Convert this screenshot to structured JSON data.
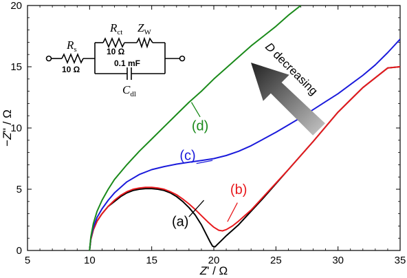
{
  "chart_data": {
    "type": "line",
    "xlabel": "Z' / Ω",
    "ylabel": "−Z'' / Ω",
    "xlim": [
      5,
      35
    ],
    "ylim": [
      0,
      20
    ],
    "xticks": [
      "5",
      "10",
      "15",
      "20",
      "25",
      "30",
      "35"
    ],
    "yticks": [
      "0",
      "5",
      "10",
      "15",
      "20"
    ],
    "grid": false,
    "series": [
      {
        "name": "(a)",
        "color": "#000000",
        "x": [
          10.0,
          10.1,
          10.3,
          10.6,
          11.0,
          11.5,
          12.0,
          12.5,
          13.0,
          13.5,
          14.0,
          14.5,
          15.0,
          15.5,
          16.0,
          16.5,
          17.0,
          17.5,
          18.0,
          18.5,
          19.0,
          19.4,
          19.7,
          19.9,
          20.1,
          20.3,
          20.6,
          21.0,
          22.0,
          24.0,
          26.0,
          28.0,
          30.0,
          32.0,
          34.0,
          35.0
        ],
        "y": [
          0.0,
          0.9,
          1.7,
          2.4,
          3.0,
          3.6,
          4.0,
          4.4,
          4.7,
          4.9,
          5.0,
          5.05,
          5.05,
          5.0,
          4.9,
          4.7,
          4.4,
          4.0,
          3.5,
          2.9,
          2.1,
          1.3,
          0.7,
          0.35,
          0.3,
          0.5,
          0.8,
          1.2,
          2.1,
          4.3,
          6.6,
          8.9,
          11.3,
          13.3,
          14.9,
          15.0
        ]
      },
      {
        "name": "(b)",
        "color": "#e8191d",
        "x": [
          10.0,
          10.1,
          10.3,
          10.6,
          11.0,
          11.5,
          12.0,
          12.5,
          13.0,
          13.5,
          14.0,
          14.5,
          15.0,
          15.5,
          16.0,
          16.5,
          17.0,
          17.5,
          18.0,
          18.5,
          19.0,
          19.5,
          20.0,
          20.4,
          20.7,
          21.0,
          21.5,
          22.0,
          23.0,
          24.0,
          26.0,
          28.0,
          30.0,
          32.0,
          34.0,
          35.0
        ],
        "y": [
          0.0,
          0.9,
          1.7,
          2.4,
          3.0,
          3.6,
          4.1,
          4.5,
          4.8,
          5.0,
          5.1,
          5.15,
          5.15,
          5.1,
          5.0,
          4.8,
          4.55,
          4.2,
          3.8,
          3.35,
          2.85,
          2.35,
          1.9,
          1.65,
          1.6,
          1.7,
          2.0,
          2.4,
          3.3,
          4.4,
          6.6,
          8.9,
          11.3,
          13.3,
          14.9,
          15.0
        ]
      },
      {
        "name": "(c)",
        "color": "#1a1adb",
        "x": [
          10.0,
          10.1,
          10.3,
          10.6,
          11.0,
          11.5,
          12.0,
          13.0,
          14.0,
          15.0,
          16.0,
          17.0,
          18.0,
          19.0,
          20.0,
          21.0,
          22.0,
          23.0,
          24.0,
          25.0,
          26.0,
          27.0,
          28.0,
          29.0,
          30.0,
          31.0,
          32.0,
          33.0,
          34.0,
          35.0
        ],
        "y": [
          0.0,
          1.0,
          1.9,
          2.7,
          3.4,
          4.1,
          4.7,
          5.6,
          6.2,
          6.6,
          6.85,
          7.05,
          7.2,
          7.35,
          7.5,
          7.75,
          8.1,
          8.55,
          9.1,
          9.65,
          10.25,
          10.85,
          11.5,
          12.15,
          12.8,
          13.55,
          14.3,
          15.15,
          16.15,
          17.25
        ]
      },
      {
        "name": "(d)",
        "color": "#1a8a1a",
        "x": [
          10.0,
          10.1,
          10.3,
          10.6,
          11.0,
          11.5,
          12.0,
          13.0,
          14.0,
          15.0,
          16.0,
          17.0,
          18.0,
          19.0,
          20.0,
          21.0,
          22.0,
          23.0,
          24.0,
          25.0,
          26.0,
          27.0
        ],
        "y": [
          0.0,
          1.1,
          2.2,
          3.2,
          4.1,
          5.0,
          5.8,
          7.0,
          8.1,
          9.1,
          10.1,
          11.1,
          12.1,
          13.0,
          14.0,
          14.9,
          15.8,
          16.7,
          17.5,
          18.3,
          19.2,
          20.0
        ]
      }
    ],
    "annotations": {
      "arrow_text": "D decreasing",
      "circuit": {
        "rs_symbol": "R",
        "rs_sub": "s",
        "rs_value": "10 Ω",
        "rct_symbol": "R",
        "rct_sub": "ct",
        "rct_value": "10 Ω",
        "zw_symbol": "Z",
        "zw_sub": "W",
        "cap_value": "0.1 mF",
        "cdl_symbol": "C",
        "cdl_sub": "dl"
      }
    }
  }
}
